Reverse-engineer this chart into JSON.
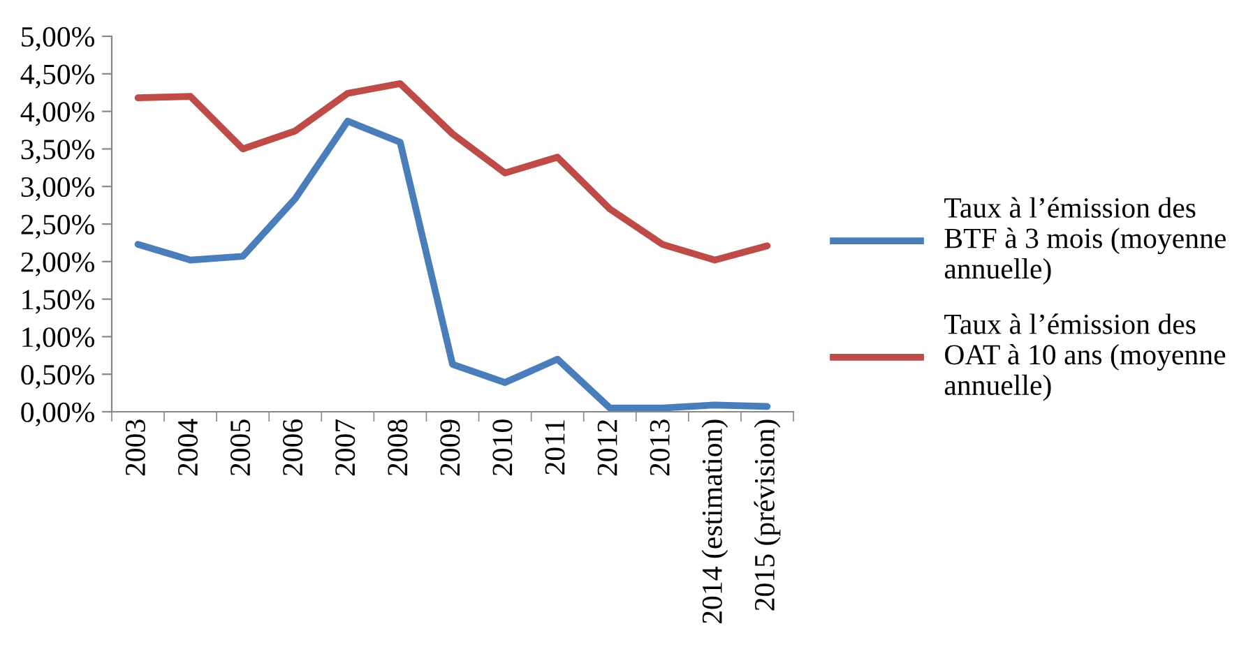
{
  "chart_data": {
    "type": "line",
    "categories": [
      "2003",
      "2004",
      "2005",
      "2006",
      "2007",
      "2008",
      "2009",
      "2010",
      "2011",
      "2012",
      "2013",
      "2014 (estimation)",
      "2015 (prévision)"
    ],
    "series": [
      {
        "name": "Taux à l’émission des BTF à 3 mois (moyenne annuelle)",
        "color": "#4a7ebb",
        "values": [
          2.23,
          2.02,
          2.07,
          2.84,
          3.87,
          3.59,
          0.63,
          0.39,
          0.7,
          0.05,
          0.05,
          0.09,
          0.07
        ]
      },
      {
        "name": "Taux à l’émission des OAT à 10 ans (moyenne annuelle)",
        "color": "#be4b48",
        "values": [
          4.18,
          4.2,
          3.5,
          3.74,
          4.24,
          4.37,
          3.7,
          3.18,
          3.39,
          2.7,
          2.23,
          2.02,
          2.21
        ]
      }
    ],
    "ylim": [
      0,
      5
    ],
    "yticks": [
      {
        "value": 0,
        "label": "0,00%"
      },
      {
        "value": 0.5,
        "label": "0,50%"
      },
      {
        "value": 1,
        "label": "1,00%"
      },
      {
        "value": 1.5,
        "label": "1,50%"
      },
      {
        "value": 2,
        "label": "2,00%"
      },
      {
        "value": 2.5,
        "label": "2,50%"
      },
      {
        "value": 3,
        "label": "3,00%"
      },
      {
        "value": 3.5,
        "label": "3,50%"
      },
      {
        "value": 4,
        "label": "4,00%"
      },
      {
        "value": 4.5,
        "label": "4,50%"
      },
      {
        "value": 5,
        "label": "5,00%"
      }
    ],
    "grid": false,
    "legend": "right",
    "marker": "none",
    "line_style": "solid"
  }
}
